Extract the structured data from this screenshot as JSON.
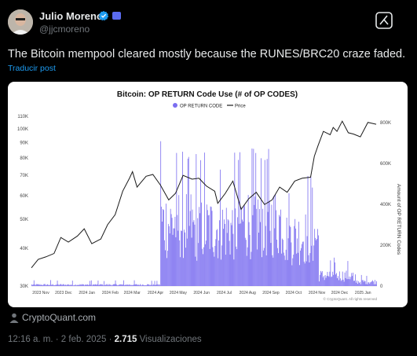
{
  "tweet": {
    "author_name": "Julio Moreno",
    "handle": "@jjcmoreno",
    "text": "The Bitcoin mempool cleared mostly because the RUNES/BRC20 craze faded.",
    "translate_label": "Traducir post",
    "source_label": "CryptoQuant.com",
    "time": "12:16 a. m.",
    "separator": "·",
    "date": "2 feb. 2025",
    "views_count": "2.715",
    "views_label": "Visualizaciones",
    "icons": [
      "avatar",
      "verified-badge-icon",
      "affiliate-badge-icon",
      "grok-icon",
      "person-icon"
    ]
  },
  "colors": {
    "background": "#000000",
    "text": "#e7e9ea",
    "muted": "#71767b",
    "link": "#1d9bf0",
    "bars": "#7b6ef0",
    "price_line": "#1a1a1a"
  },
  "chart_data": {
    "type": "bar",
    "title": "Bitcoin: OP RETURN Code Use (# of OP CODES)",
    "legend": [
      "OP RETURN CODE",
      "Price"
    ],
    "legend_position": "top-center",
    "y_left_label": "",
    "y_right_label": "Amount of OP RETURN Codes",
    "y_left_scale": "log",
    "y_left_ticks": [
      "110K",
      "100K",
      "90K",
      "80K",
      "70K",
      "60K",
      "50K",
      "40K",
      "30K"
    ],
    "y_right_ticks": [
      "800K",
      "600K",
      "400K",
      "200K",
      "0"
    ],
    "y_right_range": [
      0,
      830000
    ],
    "x_ticks": [
      "2023 Nov",
      "2023 Dec",
      "2024 Jan",
      "2024 Feb",
      "2024 Mar",
      "2024 Apr",
      "2024 May",
      "2024 Jun",
      "2024 Jul",
      "2024 Aug",
      "2024 Sep",
      "2024 Oct",
      "2024 Nov",
      "2024 Dec",
      "2025 Jan"
    ],
    "watermark": "© CryptoQuant. All rights reserved",
    "price_series": {
      "name": "Price",
      "x": [
        "2023-11-01",
        "2023-11-10",
        "2023-11-20",
        "2023-12-01",
        "2023-12-10",
        "2023-12-20",
        "2024-01-01",
        "2024-01-10",
        "2024-01-20",
        "2024-02-01",
        "2024-02-10",
        "2024-02-20",
        "2024-03-01",
        "2024-03-10",
        "2024-03-14",
        "2024-03-20",
        "2024-04-01",
        "2024-04-10",
        "2024-04-20",
        "2024-05-01",
        "2024-05-10",
        "2024-05-20",
        "2024-06-01",
        "2024-06-10",
        "2024-06-20",
        "2024-07-01",
        "2024-07-05",
        "2024-07-15",
        "2024-07-25",
        "2024-08-05",
        "2024-08-15",
        "2024-08-25",
        "2024-09-05",
        "2024-09-15",
        "2024-09-25",
        "2024-10-05",
        "2024-10-15",
        "2024-10-25",
        "2024-11-05",
        "2024-11-10",
        "2024-11-15",
        "2024-11-22",
        "2024-12-01",
        "2024-12-05",
        "2024-12-10",
        "2024-12-17",
        "2024-12-25",
        "2025-01-01",
        "2025-01-10",
        "2025-01-20",
        "2025-01-31"
      ],
      "y": [
        34500,
        36800,
        37500,
        38500,
        43500,
        42000,
        44000,
        46500,
        41500,
        43000,
        48000,
        51800,
        62000,
        68500,
        72000,
        64000,
        69500,
        70500,
        65000,
        58000,
        61000,
        70000,
        68000,
        68500,
        64500,
        62000,
        56500,
        61000,
        67000,
        54000,
        58500,
        61500,
        56000,
        58000,
        64000,
        61500,
        67000,
        68500,
        69000,
        81000,
        88000,
        98000,
        95500,
        101000,
        98000,
        106000,
        97000,
        96000,
        94000,
        105000,
        103500
      ]
    },
    "bar_series": {
      "name": "OP RETURN CODE",
      "note": "daily OP RETURN code count (right axis); near zero before 2024-04-20, spike above 800K on 2024-04-20, ~300K-600K through Nov 2024, tapering to near zero by 2025",
      "periods": [
        {
          "from": "2023-11-01",
          "to": "2024-04-19",
          "typical": 8000,
          "max": 30000
        },
        {
          "from": "2024-04-20",
          "to": "2024-04-20",
          "typical": 810000,
          "max": 810000
        },
        {
          "from": "2024-04-21",
          "to": "2024-05-31",
          "typical": 360000,
          "max": 660000
        },
        {
          "from": "2024-06-01",
          "to": "2024-07-31",
          "typical": 330000,
          "max": 680000
        },
        {
          "from": "2024-08-01",
          "to": "2024-09-30",
          "typical": 370000,
          "max": 700000
        },
        {
          "from": "2024-10-01",
          "to": "2024-11-15",
          "typical": 280000,
          "max": 560000
        },
        {
          "from": "2024-11-16",
          "to": "2024-12-31",
          "typical": 60000,
          "max": 140000
        },
        {
          "from": "2025-01-01",
          "to": "2025-01-31",
          "typical": 25000,
          "max": 60000
        }
      ]
    }
  }
}
